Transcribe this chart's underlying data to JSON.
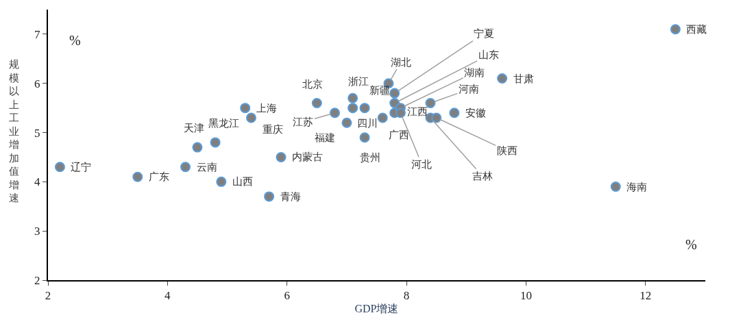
{
  "chart_data": {
    "type": "scatter",
    "xlabel": "GDP增速",
    "ylabel": "规模以上工业增加值增速",
    "annotations": [
      "%",
      "%",
      "江西"
    ],
    "series": [
      {
        "color": "#7f7f7f",
        "x": [
          2.2,
          3.5,
          4.3,
          4.5,
          4.8,
          4.9,
          5.3,
          5.4,
          5.9,
          5.7,
          6.5,
          6.8,
          7.0,
          7.1,
          7.1,
          7.3,
          7.6,
          7.3,
          7.8,
          7.7,
          7.8,
          7.8,
          7.9,
          7.9,
          8.4,
          8.4,
          8.5,
          8.8,
          9.6,
          12.5,
          11.5
        ],
        "values": [
          4.3,
          4.1,
          4.3,
          4.7,
          4.8,
          4.0,
          5.5,
          5.3,
          4.5,
          3.7,
          5.6,
          5.4,
          5.2,
          5.7,
          5.5,
          5.5,
          5.3,
          4.9,
          5.4,
          6.0,
          5.8,
          5.6,
          5.5,
          5.4,
          5.6,
          5.3,
          5.3,
          5.4,
          6.1,
          7.1,
          3.9
        ],
        "value_labels": [
          "辽宁",
          "广东",
          "云南",
          "天津",
          "黑龙江",
          "山西",
          "上海",
          "重庆",
          "内蒙古",
          "青海",
          "北京",
          "江苏",
          "福建",
          "浙江",
          null,
          "新疆",
          "四川",
          "贵州",
          "广西",
          "湖北",
          "宁夏",
          "山东",
          "湖南",
          "河北",
          "河南",
          "吉林",
          "陕西",
          "安徽",
          "甘肃",
          "西藏",
          "海南"
        ]
      }
    ],
    "xlim": [
      2,
      13
    ],
    "xticks": [
      2,
      4,
      6,
      8,
      10,
      12
    ],
    "ylim": [
      2,
      7.5
    ],
    "yticks": [
      2,
      3,
      4,
      5,
      6,
      7
    ],
    "marker": "circle"
  }
}
